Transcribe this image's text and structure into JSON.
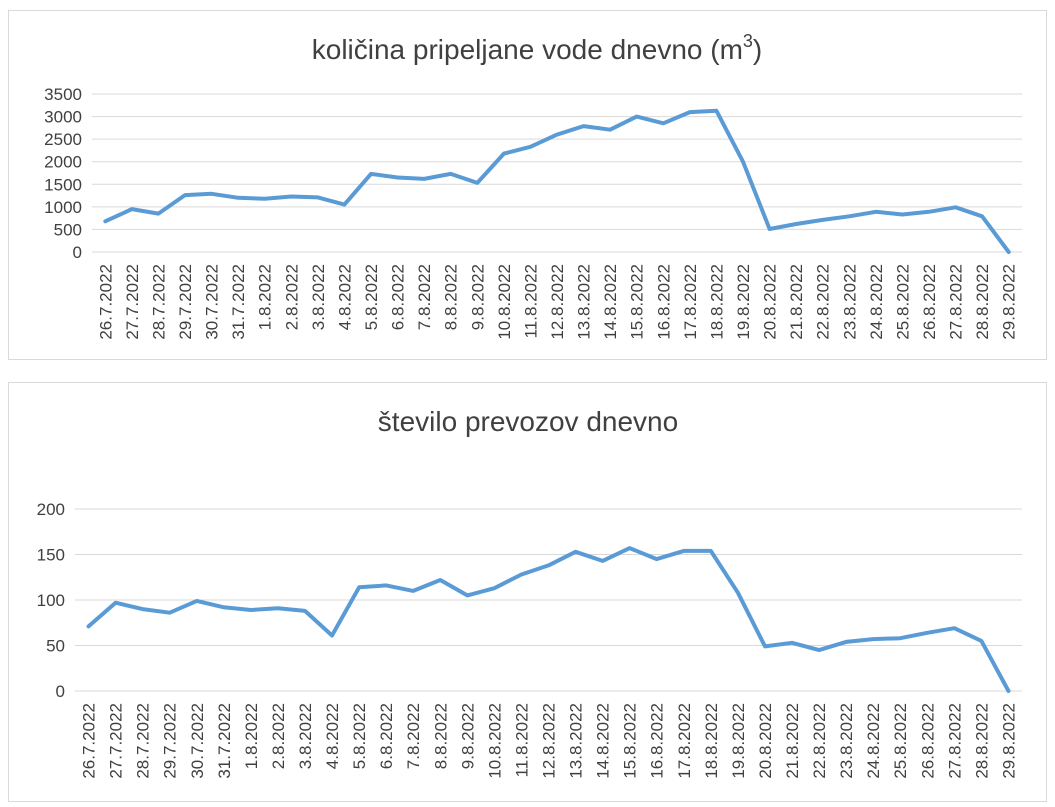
{
  "chart_data": [
    {
      "type": "line",
      "title": "količina pripeljane vode dnevno (m",
      "title_superscript": "3",
      "title_suffix": ")",
      "xlabel": "",
      "ylabel": "",
      "ylim": [
        0,
        3500
      ],
      "yticks": [
        0,
        500,
        1000,
        1500,
        2000,
        2500,
        3000,
        3500
      ],
      "grid": true,
      "legend": "none",
      "line_color": "#5b9bd5",
      "categories": [
        "26.7.2022",
        "27.7.2022",
        "28.7.2022",
        "29.7.2022",
        "30.7.2022",
        "31.7.2022",
        "1.8.2022",
        "2.8.2022",
        "3.8.2022",
        "4.8.2022",
        "5.8.2022",
        "6.8.2022",
        "7.8.2022",
        "8.8.2022",
        "9.8.2022",
        "10.8.2022",
        "11.8.2022",
        "12.8.2022",
        "13.8.2022",
        "14.8.2022",
        "15.8.2022",
        "16.8.2022",
        "17.8.2022",
        "18.8.2022",
        "19.8.2022",
        "20.8.2022",
        "21.8.2022",
        "22.8.2022",
        "23.8.2022",
        "24.8.2022",
        "25.8.2022",
        "26.8.2022",
        "27.8.2022",
        "28.8.2022",
        "29.8.2022"
      ],
      "values": [
        680,
        950,
        850,
        1260,
        1290,
        1200,
        1180,
        1230,
        1210,
        1050,
        1730,
        1650,
        1620,
        1730,
        1530,
        2180,
        2330,
        2600,
        2790,
        2710,
        3000,
        2850,
        3100,
        3130,
        2000,
        510,
        620,
        710,
        790,
        890,
        830,
        890,
        990,
        790,
        0
      ]
    },
    {
      "type": "line",
      "title": "število prevozov dnevno",
      "xlabel": "",
      "ylabel": "",
      "ylim": [
        0,
        200
      ],
      "yticks": [
        0,
        50,
        100,
        150,
        200
      ],
      "grid": true,
      "legend": "none",
      "line_color": "#5b9bd5",
      "categories": [
        "26.7.2022",
        "27.7.2022",
        "28.7.2022",
        "29.7.2022",
        "30.7.2022",
        "31.7.2022",
        "1.8.2022",
        "2.8.2022",
        "3.8.2022",
        "4.8.2022",
        "5.8.2022",
        "6.8.2022",
        "7.8.2022",
        "8.8.2022",
        "9.8.2022",
        "10.8.2022",
        "11.8.2022",
        "12.8.2022",
        "13.8.2022",
        "14.8.2022",
        "15.8.2022",
        "16.8.2022",
        "17.8.2022",
        "18.8.2022",
        "19.8.2022",
        "20.8.2022",
        "21.8.2022",
        "22.8.2022",
        "23.8.2022",
        "24.8.2022",
        "25.8.2022",
        "26.8.2022",
        "27.8.2022",
        "28.8.2022",
        "29.8.2022"
      ],
      "values": [
        71,
        97,
        90,
        86,
        99,
        92,
        89,
        91,
        88,
        61,
        114,
        116,
        110,
        122,
        105,
        113,
        128,
        138,
        153,
        143,
        157,
        145,
        154,
        154,
        108,
        49,
        53,
        45,
        54,
        57,
        58,
        64,
        69,
        55,
        0
      ]
    }
  ]
}
